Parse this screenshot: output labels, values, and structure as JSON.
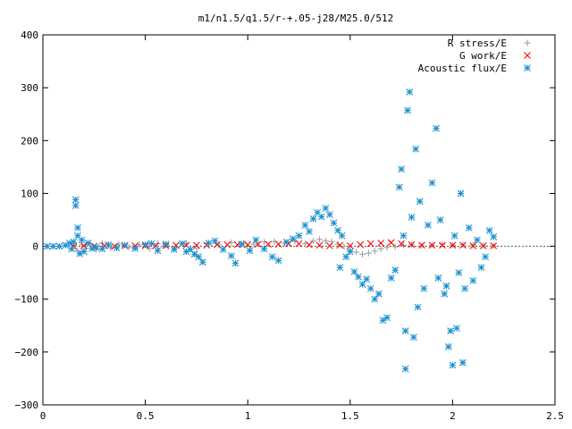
{
  "chart_data": {
    "type": "scatter",
    "title": "m1/n1.5/q1.5/r-+.05-j28/M25.0/512",
    "xlabel": "",
    "ylabel": "",
    "xlim": [
      0,
      2.5
    ],
    "ylim": [
      -300,
      400
    ],
    "xticks": [
      "0",
      "0.5",
      "1",
      "1.5",
      "2",
      "2.5"
    ],
    "yticks": [
      "400",
      "300",
      "200",
      "100",
      "0",
      "−100",
      "−200",
      "−300"
    ],
    "grid": false,
    "legend_position": "top-right",
    "series": [
      {
        "name": "R stress/E",
        "marker": "plus",
        "color": "#a0a0a0",
        "points": [
          [
            0.17,
            -9
          ],
          [
            0.19,
            3
          ],
          [
            0.21,
            -4
          ],
          [
            0.23,
            5
          ],
          [
            0.26,
            -6
          ],
          [
            0.29,
            6
          ],
          [
            0.33,
            -3
          ],
          [
            0.37,
            4
          ],
          [
            0.42,
            -2
          ],
          [
            0.47,
            3
          ],
          [
            0.52,
            -4
          ],
          [
            0.56,
            5
          ],
          [
            0.6,
            2
          ],
          [
            0.65,
            -3
          ],
          [
            0.7,
            6
          ],
          [
            0.75,
            -4
          ],
          [
            0.8,
            5
          ],
          [
            0.86,
            3
          ],
          [
            0.92,
            7
          ],
          [
            0.98,
            6
          ],
          [
            1.03,
            4
          ],
          [
            1.08,
            8
          ],
          [
            1.13,
            9
          ],
          [
            1.18,
            6
          ],
          [
            1.23,
            10
          ],
          [
            1.28,
            5
          ],
          [
            1.32,
            10
          ],
          [
            1.35,
            13
          ],
          [
            1.38,
            10
          ],
          [
            1.41,
            9
          ],
          [
            1.44,
            4
          ],
          [
            1.47,
            0
          ],
          [
            1.5,
            -7
          ],
          [
            1.53,
            -11
          ],
          [
            1.56,
            -15
          ],
          [
            1.59,
            -13
          ],
          [
            1.62,
            -9
          ],
          [
            1.65,
            -5
          ],
          [
            1.68,
            -2
          ],
          [
            1.72,
            -1
          ],
          [
            1.76,
            2
          ],
          [
            1.8,
            3
          ],
          [
            1.85,
            1
          ],
          [
            1.9,
            2
          ],
          [
            1.95,
            4
          ],
          [
            2.0,
            2
          ],
          [
            2.05,
            3
          ],
          [
            2.1,
            2
          ],
          [
            2.15,
            1
          ],
          [
            2.2,
            1
          ]
        ]
      },
      {
        "name": "G work/E",
        "marker": "cross",
        "color": "#ff0000",
        "points": [
          [
            0.15,
            0
          ],
          [
            0.2,
            1
          ],
          [
            0.25,
            0
          ],
          [
            0.3,
            1
          ],
          [
            0.35,
            0
          ],
          [
            0.4,
            1
          ],
          [
            0.45,
            1
          ],
          [
            0.5,
            1
          ],
          [
            0.55,
            1
          ],
          [
            0.6,
            1
          ],
          [
            0.65,
            2
          ],
          [
            0.7,
            2
          ],
          [
            0.75,
            2
          ],
          [
            0.8,
            2
          ],
          [
            0.85,
            3
          ],
          [
            0.9,
            3
          ],
          [
            0.95,
            3
          ],
          [
            1.0,
            3
          ],
          [
            1.05,
            4
          ],
          [
            1.1,
            4
          ],
          [
            1.15,
            4
          ],
          [
            1.2,
            5
          ],
          [
            1.25,
            5
          ],
          [
            1.3,
            3
          ],
          [
            1.35,
            2
          ],
          [
            1.4,
            1
          ],
          [
            1.45,
            2
          ],
          [
            1.5,
            1
          ],
          [
            1.55,
            3
          ],
          [
            1.6,
            5
          ],
          [
            1.65,
            6
          ],
          [
            1.7,
            7
          ],
          [
            1.75,
            5
          ],
          [
            1.8,
            3
          ],
          [
            1.85,
            2
          ],
          [
            1.9,
            2
          ],
          [
            1.95,
            2
          ],
          [
            2.0,
            2
          ],
          [
            2.05,
            2
          ],
          [
            2.1,
            1
          ],
          [
            2.15,
            1
          ],
          [
            2.2,
            1
          ]
        ]
      },
      {
        "name": "Acoustic flux/E",
        "marker": "star",
        "color": "#1e90d0",
        "points": [
          [
            0.02,
            0
          ],
          [
            0.05,
            0
          ],
          [
            0.08,
            0
          ],
          [
            0.11,
            2
          ],
          [
            0.13,
            6
          ],
          [
            0.14,
            -5
          ],
          [
            0.15,
            8
          ],
          [
            0.16,
            88
          ],
          [
            0.16,
            77
          ],
          [
            0.17,
            35
          ],
          [
            0.17,
            20
          ],
          [
            0.18,
            -14
          ],
          [
            0.19,
            12
          ],
          [
            0.2,
            -10
          ],
          [
            0.22,
            6
          ],
          [
            0.24,
            -4
          ],
          [
            0.26,
            -2
          ],
          [
            0.29,
            -5
          ],
          [
            0.32,
            3
          ],
          [
            0.36,
            -3
          ],
          [
            0.4,
            2
          ],
          [
            0.45,
            -4
          ],
          [
            0.5,
            3
          ],
          [
            0.53,
            5
          ],
          [
            0.56,
            -8
          ],
          [
            0.6,
            4
          ],
          [
            0.64,
            -6
          ],
          [
            0.68,
            5
          ],
          [
            0.7,
            -10
          ],
          [
            0.72,
            -6
          ],
          [
            0.74,
            -15
          ],
          [
            0.76,
            -20
          ],
          [
            0.78,
            -30
          ],
          [
            0.81,
            6
          ],
          [
            0.84,
            10
          ],
          [
            0.88,
            -6
          ],
          [
            0.92,
            -18
          ],
          [
            0.94,
            -32
          ],
          [
            0.97,
            4
          ],
          [
            1.01,
            -8
          ],
          [
            1.04,
            12
          ],
          [
            1.08,
            -5
          ],
          [
            1.12,
            -20
          ],
          [
            1.15,
            -27
          ],
          [
            1.19,
            8
          ],
          [
            1.22,
            14
          ],
          [
            1.25,
            20
          ],
          [
            1.28,
            40
          ],
          [
            1.3,
            28
          ],
          [
            1.32,
            52
          ],
          [
            1.34,
            64
          ],
          [
            1.36,
            56
          ],
          [
            1.38,
            72
          ],
          [
            1.4,
            60
          ],
          [
            1.42,
            44
          ],
          [
            1.44,
            30
          ],
          [
            1.45,
            -40
          ],
          [
            1.46,
            20
          ],
          [
            1.48,
            -20
          ],
          [
            1.5,
            -10
          ],
          [
            1.52,
            -48
          ],
          [
            1.54,
            -58
          ],
          [
            1.56,
            -72
          ],
          [
            1.58,
            -62
          ],
          [
            1.6,
            -80
          ],
          [
            1.62,
            -100
          ],
          [
            1.64,
            -90
          ],
          [
            1.66,
            -140
          ],
          [
            1.68,
            -135
          ],
          [
            1.7,
            -60
          ],
          [
            1.72,
            -45
          ],
          [
            1.74,
            112
          ],
          [
            1.75,
            146
          ],
          [
            1.76,
            20
          ],
          [
            1.77,
            -232
          ],
          [
            1.77,
            -160
          ],
          [
            1.78,
            257
          ],
          [
            1.79,
            292
          ],
          [
            1.8,
            55
          ],
          [
            1.81,
            -172
          ],
          [
            1.82,
            184
          ],
          [
            1.83,
            -115
          ],
          [
            1.84,
            85
          ],
          [
            1.86,
            -80
          ],
          [
            1.88,
            40
          ],
          [
            1.9,
            120
          ],
          [
            1.92,
            223
          ],
          [
            1.93,
            -60
          ],
          [
            1.94,
            50
          ],
          [
            1.96,
            -90
          ],
          [
            1.97,
            -75
          ],
          [
            1.98,
            -190
          ],
          [
            1.99,
            -160
          ],
          [
            2.0,
            -225
          ],
          [
            2.01,
            20
          ],
          [
            2.02,
            -155
          ],
          [
            2.03,
            -50
          ],
          [
            2.04,
            100
          ],
          [
            2.05,
            -220
          ],
          [
            2.06,
            -80
          ],
          [
            2.08,
            35
          ],
          [
            2.1,
            -65
          ],
          [
            2.12,
            12
          ],
          [
            2.14,
            -40
          ],
          [
            2.16,
            -20
          ],
          [
            2.18,
            30
          ],
          [
            2.2,
            18
          ]
        ]
      }
    ]
  }
}
